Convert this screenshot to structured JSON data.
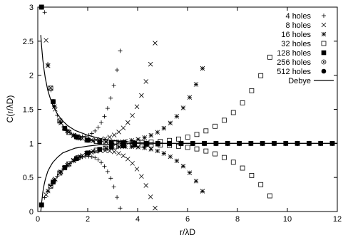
{
  "chart_data": {
    "type": "scatter",
    "title": "",
    "xlabel": "r/λD",
    "ylabel": "C(r/λD)",
    "xlim": [
      0,
      12
    ],
    "ylim": [
      0,
      3
    ],
    "x_ticks": [
      "0",
      "2",
      "4",
      "6",
      "8",
      "10",
      "12"
    ],
    "y_ticks": [
      "0",
      "0.5",
      "1",
      "1.5",
      "2",
      "2.5",
      "3"
    ],
    "grid": false,
    "legend_position": "top-right",
    "legend_line_label": "Debye",
    "series": [
      {
        "name": "4 holes",
        "marker": "plus",
        "rmax": 3.3,
        "peak": 2.35
      },
      {
        "name": "8 holes",
        "marker": "cross",
        "rmax": 4.7,
        "peak": 2.4
      },
      {
        "name": "16 holes",
        "marker": "star",
        "rmax": 6.6,
        "peak": 2.0
      },
      {
        "name": "32 holes",
        "marker": "open-square",
        "rmax": 9.3,
        "peak": 2.1
      },
      {
        "name": "128 holes",
        "marker": "filled-square",
        "rmax": 11.8,
        "peak": 1.0
      },
      {
        "name": "256 holes",
        "marker": "open-circle",
        "rmax": 11.8,
        "peak": 1.0
      },
      {
        "name": "512 holes",
        "marker": "filled-circle",
        "rmax": 11.8,
        "peak": 1.0
      }
    ],
    "debye_curve": {
      "name": "Debye",
      "x": [
        0.12,
        0.15,
        0.2,
        0.25,
        0.3,
        0.4,
        0.5,
        0.6,
        0.8,
        1.0,
        1.2,
        1.5,
        2.0,
        2.5,
        3.0,
        4.0,
        5.0,
        6.0,
        8.0,
        10.0,
        12.0
      ],
      "upper_y": [
        2.59,
        2.43,
        2.23,
        2.08,
        1.96,
        1.78,
        1.66,
        1.56,
        1.42,
        1.33,
        1.26,
        1.19,
        1.12,
        1.07,
        1.04,
        1.01,
        1.0,
        1.0,
        1.0,
        1.0,
        1.0
      ],
      "lower_y": [
        0.0,
        0.12,
        0.28,
        0.39,
        0.47,
        0.59,
        0.66,
        0.72,
        0.8,
        0.86,
        0.89,
        0.93,
        0.96,
        0.98,
        0.99,
        1.0,
        1.0,
        1.0,
        1.0,
        1.0,
        1.0
      ]
    }
  }
}
